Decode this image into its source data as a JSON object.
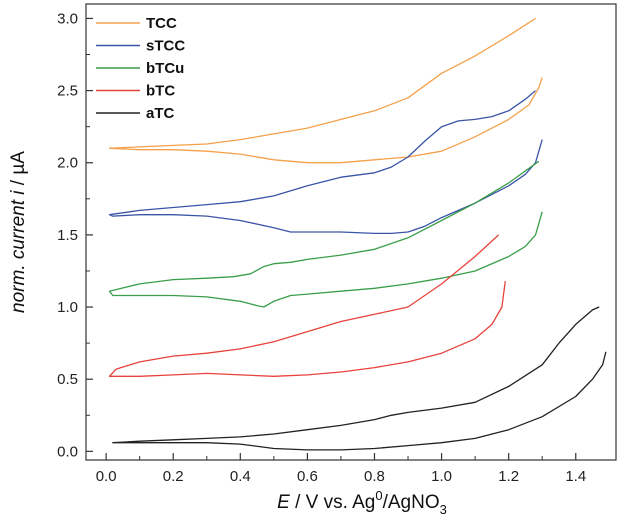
{
  "chart_data": {
    "type": "line",
    "title": "",
    "xlabel": {
      "italic": "E",
      "rest": " / V vs. Ag",
      "sup": "0",
      "mid": "/AgNO",
      "sub": "3"
    },
    "ylabel": {
      "italic": "norm. current i",
      "rest": " / µA"
    },
    "xlim": [
      -0.06,
      1.52
    ],
    "ylim": [
      -0.06,
      3.1
    ],
    "x_ticks": [
      "0.0",
      "0.2",
      "0.4",
      "0.6",
      "0.8",
      "1.0",
      "1.2",
      "1.4"
    ],
    "y_ticks": [
      "0.0",
      "0.5",
      "1.0",
      "1.5",
      "2.0",
      "2.5",
      "3.0"
    ],
    "legend": {
      "position": "top-left",
      "entries": [
        "TCC",
        "sTCC",
        "bTCu",
        "bTC",
        "aTC"
      ]
    },
    "series": [
      {
        "name": "TCC",
        "color": "#f5a04a",
        "points": [
          [
            1.28,
            3.0
          ],
          [
            1.2,
            2.88
          ],
          [
            1.1,
            2.74
          ],
          [
            1.0,
            2.62
          ],
          [
            0.9,
            2.45
          ],
          [
            0.8,
            2.36
          ],
          [
            0.7,
            2.3
          ],
          [
            0.6,
            2.24
          ],
          [
            0.5,
            2.2
          ],
          [
            0.4,
            2.16
          ],
          [
            0.3,
            2.13
          ],
          [
            0.2,
            2.12
          ],
          [
            0.1,
            2.11
          ],
          [
            0.01,
            2.1
          ],
          [
            0.1,
            2.09
          ],
          [
            0.2,
            2.09
          ],
          [
            0.3,
            2.08
          ],
          [
            0.4,
            2.06
          ],
          [
            0.5,
            2.02
          ],
          [
            0.6,
            2.0
          ],
          [
            0.7,
            2.0
          ],
          [
            0.8,
            2.02
          ],
          [
            0.9,
            2.04
          ],
          [
            1.0,
            2.08
          ],
          [
            1.1,
            2.18
          ],
          [
            1.2,
            2.3
          ],
          [
            1.26,
            2.4
          ],
          [
            1.29,
            2.52
          ],
          [
            1.3,
            2.59
          ]
        ]
      },
      {
        "name": "sTCC",
        "color": "#3a55a8",
        "points": [
          [
            1.28,
            2.5
          ],
          [
            1.25,
            2.44
          ],
          [
            1.2,
            2.36
          ],
          [
            1.15,
            2.32
          ],
          [
            1.1,
            2.3
          ],
          [
            1.05,
            2.29
          ],
          [
            1.0,
            2.25
          ],
          [
            0.95,
            2.15
          ],
          [
            0.9,
            2.04
          ],
          [
            0.85,
            1.97
          ],
          [
            0.8,
            1.93
          ],
          [
            0.7,
            1.9
          ],
          [
            0.6,
            1.84
          ],
          [
            0.5,
            1.77
          ],
          [
            0.4,
            1.73
          ],
          [
            0.3,
            1.71
          ],
          [
            0.2,
            1.69
          ],
          [
            0.1,
            1.67
          ],
          [
            0.01,
            1.64
          ],
          [
            0.02,
            1.63
          ],
          [
            0.1,
            1.64
          ],
          [
            0.2,
            1.64
          ],
          [
            0.3,
            1.63
          ],
          [
            0.4,
            1.6
          ],
          [
            0.5,
            1.55
          ],
          [
            0.55,
            1.52
          ],
          [
            0.6,
            1.52
          ],
          [
            0.7,
            1.52
          ],
          [
            0.8,
            1.51
          ],
          [
            0.85,
            1.51
          ],
          [
            0.9,
            1.52
          ],
          [
            0.95,
            1.56
          ],
          [
            1.0,
            1.62
          ],
          [
            1.1,
            1.72
          ],
          [
            1.2,
            1.84
          ],
          [
            1.25,
            1.92
          ],
          [
            1.28,
            2.0
          ],
          [
            1.3,
            2.16
          ]
        ]
      },
      {
        "name": "bTCu",
        "color": "#3a9e4a",
        "points": [
          [
            1.29,
            2.01
          ],
          [
            1.2,
            1.86
          ],
          [
            1.1,
            1.72
          ],
          [
            1.0,
            1.6
          ],
          [
            0.9,
            1.48
          ],
          [
            0.8,
            1.4
          ],
          [
            0.7,
            1.36
          ],
          [
            0.6,
            1.33
          ],
          [
            0.55,
            1.31
          ],
          [
            0.5,
            1.3
          ],
          [
            0.47,
            1.28
          ],
          [
            0.43,
            1.23
          ],
          [
            0.38,
            1.21
          ],
          [
            0.3,
            1.2
          ],
          [
            0.2,
            1.19
          ],
          [
            0.1,
            1.16
          ],
          [
            0.01,
            1.11
          ],
          [
            0.02,
            1.08
          ],
          [
            0.1,
            1.08
          ],
          [
            0.2,
            1.08
          ],
          [
            0.3,
            1.07
          ],
          [
            0.4,
            1.04
          ],
          [
            0.45,
            1.01
          ],
          [
            0.47,
            1.0
          ],
          [
            0.5,
            1.04
          ],
          [
            0.55,
            1.08
          ],
          [
            0.6,
            1.09
          ],
          [
            0.7,
            1.11
          ],
          [
            0.8,
            1.13
          ],
          [
            0.9,
            1.16
          ],
          [
            1.0,
            1.2
          ],
          [
            1.1,
            1.25
          ],
          [
            1.2,
            1.35
          ],
          [
            1.25,
            1.42
          ],
          [
            1.28,
            1.5
          ],
          [
            1.3,
            1.66
          ]
        ]
      },
      {
        "name": "bTC",
        "color": "#e8423c",
        "points": [
          [
            1.17,
            1.5
          ],
          [
            1.1,
            1.35
          ],
          [
            1.0,
            1.16
          ],
          [
            0.9,
            1.0
          ],
          [
            0.8,
            0.95
          ],
          [
            0.7,
            0.9
          ],
          [
            0.6,
            0.83
          ],
          [
            0.5,
            0.76
          ],
          [
            0.4,
            0.71
          ],
          [
            0.3,
            0.68
          ],
          [
            0.2,
            0.66
          ],
          [
            0.1,
            0.62
          ],
          [
            0.03,
            0.57
          ],
          [
            0.01,
            0.52
          ],
          [
            0.1,
            0.52
          ],
          [
            0.2,
            0.53
          ],
          [
            0.3,
            0.54
          ],
          [
            0.4,
            0.53
          ],
          [
            0.5,
            0.52
          ],
          [
            0.6,
            0.53
          ],
          [
            0.7,
            0.55
          ],
          [
            0.8,
            0.58
          ],
          [
            0.9,
            0.62
          ],
          [
            1.0,
            0.68
          ],
          [
            1.1,
            0.78
          ],
          [
            1.15,
            0.88
          ],
          [
            1.18,
            1.0
          ],
          [
            1.19,
            1.18
          ]
        ]
      },
      {
        "name": "aTC",
        "color": "#222222",
        "points": [
          [
            1.47,
            1.0
          ],
          [
            1.45,
            0.98
          ],
          [
            1.4,
            0.88
          ],
          [
            1.35,
            0.75
          ],
          [
            1.3,
            0.6
          ],
          [
            1.2,
            0.45
          ],
          [
            1.1,
            0.34
          ],
          [
            1.0,
            0.3
          ],
          [
            0.9,
            0.27
          ],
          [
            0.85,
            0.25
          ],
          [
            0.8,
            0.22
          ],
          [
            0.7,
            0.18
          ],
          [
            0.6,
            0.15
          ],
          [
            0.5,
            0.12
          ],
          [
            0.4,
            0.1
          ],
          [
            0.3,
            0.09
          ],
          [
            0.2,
            0.08
          ],
          [
            0.1,
            0.07
          ],
          [
            0.02,
            0.06
          ],
          [
            0.1,
            0.06
          ],
          [
            0.2,
            0.06
          ],
          [
            0.3,
            0.06
          ],
          [
            0.4,
            0.05
          ],
          [
            0.5,
            0.02
          ],
          [
            0.6,
            0.01
          ],
          [
            0.7,
            0.01
          ],
          [
            0.8,
            0.02
          ],
          [
            0.9,
            0.04
          ],
          [
            1.0,
            0.06
          ],
          [
            1.1,
            0.09
          ],
          [
            1.2,
            0.15
          ],
          [
            1.3,
            0.24
          ],
          [
            1.4,
            0.38
          ],
          [
            1.45,
            0.5
          ],
          [
            1.48,
            0.6
          ],
          [
            1.49,
            0.69
          ]
        ]
      }
    ]
  }
}
